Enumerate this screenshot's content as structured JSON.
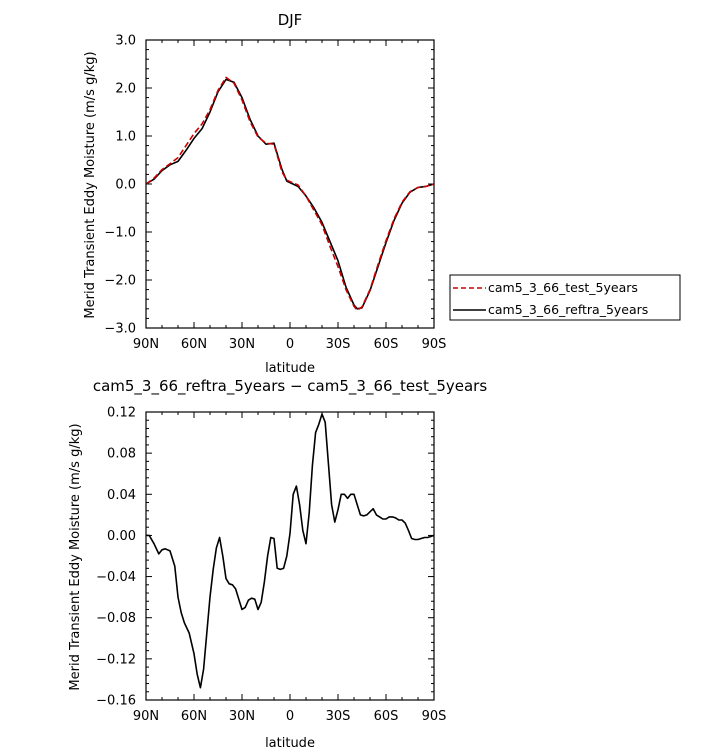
{
  "chart_data": [
    {
      "type": "line",
      "title": "DJF",
      "xlabel": "latitude",
      "ylabel": "Merid Transient Eddy Moisture (m/s g/kg)",
      "xlim": [
        90,
        -90
      ],
      "ylim": [
        -3.0,
        3.0
      ],
      "x_tick_values": [
        90,
        60,
        30,
        0,
        -30,
        -60,
        -90
      ],
      "x_tick_labels": [
        "90N",
        "60N",
        "30N",
        "0",
        "30S",
        "60S",
        "90S"
      ],
      "y_tick_values": [
        3.0,
        2.0,
        1.0,
        0.0,
        -1.0,
        -2.0,
        -3.0
      ],
      "y_tick_labels": [
        "3.0",
        "2.0",
        "1.0",
        "0.0",
        "−1.0",
        "−2.0",
        "−3.0"
      ],
      "grid": false,
      "legend": {
        "position": "right",
        "entries": [
          "cam5_3_66_test_5years",
          "cam5_3_66_reftra_5years"
        ]
      },
      "series": [
        {
          "name": "cam5_3_66_test_5years",
          "color": "#cc0000",
          "dash": "dashed",
          "x": [
            90,
            85,
            80,
            75,
            70,
            65,
            60,
            55,
            50,
            45,
            40,
            35,
            30,
            25,
            20,
            15,
            10,
            5,
            2,
            0,
            -5,
            -10,
            -15,
            -20,
            -25,
            -30,
            -35,
            -40,
            -42,
            -45,
            -50,
            -55,
            -60,
            -65,
            -70,
            -75,
            -80,
            -85,
            -90
          ],
          "y": [
            0.0,
            0.12,
            0.3,
            0.42,
            0.55,
            0.8,
            1.05,
            1.25,
            1.55,
            1.95,
            2.22,
            2.1,
            1.75,
            1.3,
            0.98,
            0.85,
            0.83,
            0.25,
            0.08,
            0.05,
            -0.02,
            -0.25,
            -0.55,
            -0.85,
            -1.3,
            -1.72,
            -2.2,
            -2.55,
            -2.63,
            -2.56,
            -2.2,
            -1.68,
            -1.18,
            -0.73,
            -0.38,
            -0.16,
            -0.07,
            -0.05,
            0.0
          ]
        },
        {
          "name": "cam5_3_66_reftra_5years",
          "color": "#000000",
          "dash": "solid",
          "x": [
            90,
            85,
            80,
            75,
            70,
            65,
            60,
            55,
            50,
            45,
            40,
            35,
            30,
            25,
            20,
            15,
            10,
            5,
            2,
            0,
            -5,
            -10,
            -15,
            -20,
            -25,
            -30,
            -35,
            -40,
            -42,
            -45,
            -50,
            -55,
            -60,
            -65,
            -70,
            -75,
            -80,
            -85,
            -90
          ],
          "y": [
            0.0,
            0.1,
            0.28,
            0.4,
            0.47,
            0.7,
            0.95,
            1.15,
            1.5,
            1.92,
            2.18,
            2.12,
            1.8,
            1.35,
            1.0,
            0.83,
            0.85,
            0.3,
            0.06,
            0.03,
            -0.05,
            -0.25,
            -0.5,
            -0.8,
            -1.2,
            -1.6,
            -2.15,
            -2.52,
            -2.6,
            -2.58,
            -2.22,
            -1.72,
            -1.22,
            -0.76,
            -0.4,
            -0.17,
            -0.07,
            -0.05,
            0.0
          ]
        }
      ]
    },
    {
      "type": "line",
      "title": "cam5_3_66_reftra_5years − cam5_3_66_test_5years",
      "xlabel": "latitude",
      "ylabel": "Merid Transient Eddy Moisture (m/s g/kg)",
      "xlim": [
        90,
        -90
      ],
      "ylim": [
        -0.16,
        0.12
      ],
      "x_tick_values": [
        90,
        60,
        30,
        0,
        -30,
        -60,
        -90
      ],
      "x_tick_labels": [
        "90N",
        "60N",
        "30N",
        "0",
        "30S",
        "60S",
        "90S"
      ],
      "y_tick_values": [
        0.12,
        0.08,
        0.04,
        0.0,
        -0.04,
        -0.08,
        -0.12,
        -0.16
      ],
      "y_tick_labels": [
        "0.12",
        "0.08",
        "0.04",
        "0.00",
        "−0.04",
        "−0.08",
        "−0.12",
        "−0.16"
      ],
      "grid": false,
      "series": [
        {
          "color": "#000000",
          "dash": "solid",
          "x": [
            90,
            88,
            85,
            82,
            80,
            78,
            75,
            72,
            70,
            68,
            66,
            63,
            60,
            58,
            56,
            54,
            52,
            50,
            48,
            46,
            44,
            42,
            40,
            38,
            36,
            34,
            32,
            30,
            28,
            26,
            24,
            22,
            20,
            18,
            16,
            14,
            12,
            10,
            8,
            6,
            4,
            2,
            0,
            -2,
            -4,
            -6,
            -8,
            -10,
            -12,
            -14,
            -16,
            -18,
            -20,
            -22,
            -24,
            -26,
            -28,
            -30,
            -32,
            -34,
            -36,
            -38,
            -40,
            -42,
            -44,
            -46,
            -48,
            -50,
            -52,
            -54,
            -56,
            -58,
            -60,
            -62,
            -64,
            -66,
            -68,
            -70,
            -72,
            -74,
            -76,
            -78,
            -80,
            -82,
            -84,
            -86,
            -88,
            -90
          ],
          "y": [
            0.0,
            0.0,
            -0.008,
            -0.018,
            -0.014,
            -0.013,
            -0.015,
            -0.03,
            -0.06,
            -0.075,
            -0.085,
            -0.095,
            -0.115,
            -0.135,
            -0.148,
            -0.13,
            -0.095,
            -0.06,
            -0.033,
            -0.012,
            -0.002,
            -0.02,
            -0.042,
            -0.047,
            -0.048,
            -0.052,
            -0.062,
            -0.072,
            -0.07,
            -0.063,
            -0.061,
            -0.062,
            -0.072,
            -0.065,
            -0.045,
            -0.02,
            -0.002,
            -0.003,
            -0.032,
            -0.033,
            -0.032,
            -0.02,
            0.002,
            0.04,
            0.048,
            0.03,
            0.005,
            -0.008,
            0.022,
            0.068,
            0.1,
            0.108,
            0.118,
            0.11,
            0.07,
            0.03,
            0.013,
            0.025,
            0.04,
            0.04,
            0.036,
            0.04,
            0.04,
            0.03,
            0.02,
            0.019,
            0.02,
            0.023,
            0.026,
            0.02,
            0.018,
            0.016,
            0.016,
            0.018,
            0.018,
            0.017,
            0.015,
            0.015,
            0.012,
            0.005,
            -0.003,
            -0.004,
            -0.004,
            -0.003,
            -0.002,
            -0.002,
            -0.001,
            0.0
          ]
        }
      ]
    }
  ]
}
